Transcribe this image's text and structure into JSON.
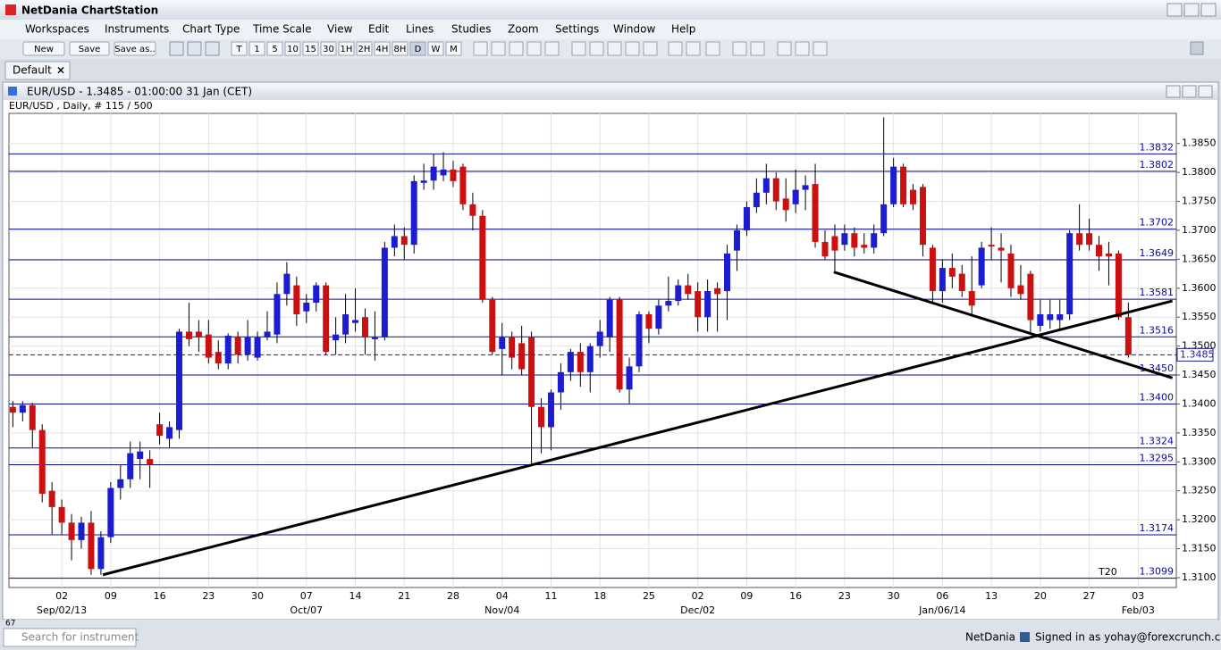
{
  "window": {
    "title": "NetDania ChartStation"
  },
  "menu": [
    "Workspaces",
    "Instruments",
    "Chart Type",
    "Time Scale",
    "View",
    "Edit",
    "Lines",
    "Studies",
    "Zoom",
    "Settings",
    "Window",
    "Help"
  ],
  "toolbar": {
    "buttons": [
      "New",
      "Save",
      "Save as.."
    ],
    "timescales": [
      "T",
      "1",
      "5",
      "10",
      "15",
      "30",
      "1H",
      "2H",
      "4H",
      "8H",
      "D",
      "W",
      "M"
    ]
  },
  "tabs": [
    "Default"
  ],
  "chart_window": {
    "title": "EUR/USD - 1.3485 - 01:00:00  31 Jan (CET)"
  },
  "chart_data": {
    "type": "candlestick",
    "subtitle": "EUR/USD , Daily, # 115 / 500",
    "up_color": "#1c1cd0",
    "down_color": "#cc1010",
    "grid": true,
    "xlim": [
      -0.4,
      118.9
    ],
    "ylim": [
      1.3083,
      1.3902
    ],
    "yticks": [
      {
        "value": 1.31,
        "label": "1.3100"
      },
      {
        "value": 1.315,
        "label": "1.3150"
      },
      {
        "value": 1.32,
        "label": "1.3200"
      },
      {
        "value": 1.325,
        "label": "1.3250"
      },
      {
        "value": 1.33,
        "label": "1.3300"
      },
      {
        "value": 1.335,
        "label": "1.3350"
      },
      {
        "value": 1.34,
        "label": "1.3400"
      },
      {
        "value": 1.345,
        "label": "1.3450"
      },
      {
        "value": 1.35,
        "label": "1.3500"
      },
      {
        "value": 1.355,
        "label": "1.3550"
      },
      {
        "value": 1.36,
        "label": "1.3600"
      },
      {
        "value": 1.365,
        "label": "1.3650"
      },
      {
        "value": 1.37,
        "label": "1.3700"
      },
      {
        "value": 1.375,
        "label": "1.3750"
      },
      {
        "value": 1.38,
        "label": "1.3800"
      },
      {
        "value": 1.385,
        "label": "1.3850"
      }
    ],
    "xticks": [
      {
        "value": 5,
        "label": "02"
      },
      {
        "value": 10,
        "label": "09"
      },
      {
        "value": 15,
        "label": "16"
      },
      {
        "value": 20,
        "label": "23"
      },
      {
        "value": 25,
        "label": "30"
      },
      {
        "value": 30,
        "label": "07"
      },
      {
        "value": 35,
        "label": "14"
      },
      {
        "value": 40,
        "label": "21"
      },
      {
        "value": 45,
        "label": "28"
      },
      {
        "value": 50,
        "label": "04"
      },
      {
        "value": 55,
        "label": "11"
      },
      {
        "value": 60,
        "label": "18"
      },
      {
        "value": 65,
        "label": "25"
      },
      {
        "value": 70,
        "label": "02"
      },
      {
        "value": 75,
        "label": "09"
      },
      {
        "value": 80,
        "label": "16"
      },
      {
        "value": 85,
        "label": "23"
      },
      {
        "value": 90,
        "label": "30"
      },
      {
        "value": 95,
        "label": "06"
      },
      {
        "value": 100,
        "label": "13"
      },
      {
        "value": 105,
        "label": "20"
      },
      {
        "value": 110,
        "label": "27"
      },
      {
        "value": 115,
        "label": "03"
      }
    ],
    "xticks_major": [
      {
        "value": 5,
        "label": "Sep/02/13"
      },
      {
        "value": 30,
        "label": "Oct/07"
      },
      {
        "value": 50,
        "label": "Nov/04"
      },
      {
        "value": 70,
        "label": "Dec/02"
      },
      {
        "value": 95,
        "label": "Jan/06/14"
      },
      {
        "value": 115,
        "label": "Feb/03"
      }
    ],
    "levels": [
      1.3832,
      1.3802,
      1.3702,
      1.3649,
      1.3581,
      1.3516,
      {
        "value": 1.345,
        "label": "1.3450"
      },
      {
        "value": 1.34,
        "label": "1.3400"
      },
      1.3324,
      1.3295,
      1.3174,
      1.3099
    ],
    "level_color": "#0a0a9a",
    "last_price": {
      "value": 1.3485,
      "label": "1.3485"
    },
    "trendlines": [
      [
        9.2,
        1.3105,
        118.5,
        1.3578
      ],
      [
        83.9,
        1.3628,
        118.5,
        1.3445
      ]
    ],
    "annotation": "T20",
    "ohlc": [
      [
        1.3395,
        1.3405,
        1.336,
        1.3385
      ],
      [
        1.3385,
        1.3405,
        1.337,
        1.3398
      ],
      [
        1.3398,
        1.3402,
        1.3325,
        1.3355
      ],
      [
        1.3355,
        1.3365,
        1.323,
        1.3245
      ],
      [
        1.325,
        1.3265,
        1.3175,
        1.3222
      ],
      [
        1.3222,
        1.3235,
        1.3175,
        1.3195
      ],
      [
        1.3195,
        1.321,
        1.313,
        1.3165
      ],
      [
        1.3165,
        1.3205,
        1.315,
        1.3195
      ],
      [
        1.3195,
        1.3215,
        1.3105,
        1.3115
      ],
      [
        1.3115,
        1.318,
        1.3105,
        1.317
      ],
      [
        1.317,
        1.3265,
        1.316,
        1.3255
      ],
      [
        1.3255,
        1.3295,
        1.3235,
        1.327
      ],
      [
        1.327,
        1.3335,
        1.3255,
        1.3315
      ],
      [
        1.3305,
        1.3335,
        1.327,
        1.3318
      ],
      [
        1.3305,
        1.332,
        1.3255,
        1.3295
      ],
      [
        1.3365,
        1.3385,
        1.333,
        1.3345
      ],
      [
        1.334,
        1.337,
        1.3325,
        1.336
      ],
      [
        1.3355,
        1.353,
        1.334,
        1.3525
      ],
      [
        1.3525,
        1.3575,
        1.35,
        1.3512
      ],
      [
        1.3525,
        1.3545,
        1.349,
        1.3515
      ],
      [
        1.352,
        1.3545,
        1.347,
        1.348
      ],
      [
        1.349,
        1.351,
        1.346,
        1.347
      ],
      [
        1.347,
        1.3522,
        1.346,
        1.3518
      ],
      [
        1.3515,
        1.3525,
        1.347,
        1.3485
      ],
      [
        1.3485,
        1.3545,
        1.3475,
        1.3515
      ],
      [
        1.348,
        1.3525,
        1.3475,
        1.3515
      ],
      [
        1.3515,
        1.356,
        1.351,
        1.3525
      ],
      [
        1.352,
        1.361,
        1.3505,
        1.359
      ],
      [
        1.359,
        1.3645,
        1.357,
        1.3625
      ],
      [
        1.3605,
        1.362,
        1.3535,
        1.3555
      ],
      [
        1.356,
        1.359,
        1.354,
        1.3575
      ],
      [
        1.3575,
        1.361,
        1.356,
        1.3605
      ],
      [
        1.3605,
        1.361,
        1.3485,
        1.349
      ],
      [
        1.351,
        1.355,
        1.3485,
        1.352
      ],
      [
        1.352,
        1.359,
        1.3505,
        1.3555
      ],
      [
        1.354,
        1.36,
        1.3525,
        1.3545
      ],
      [
        1.355,
        1.3565,
        1.3485,
        1.3515
      ],
      [
        1.3512,
        1.356,
        1.3475,
        1.3515
      ],
      [
        1.3515,
        1.368,
        1.351,
        1.367
      ],
      [
        1.367,
        1.371,
        1.3655,
        1.369
      ],
      [
        1.369,
        1.3705,
        1.365,
        1.3675
      ],
      [
        1.3675,
        1.3795,
        1.366,
        1.3785
      ],
      [
        1.3782,
        1.3815,
        1.377,
        1.3786
      ],
      [
        1.3786,
        1.3832,
        1.377,
        1.381
      ],
      [
        1.3795,
        1.3835,
        1.3785,
        1.3805
      ],
      [
        1.3805,
        1.382,
        1.3775,
        1.3785
      ],
      [
        1.381,
        1.3815,
        1.3735,
        1.3745
      ],
      [
        1.3745,
        1.3765,
        1.37,
        1.3725
      ],
      [
        1.3725,
        1.3735,
        1.3575,
        1.358
      ],
      [
        1.358,
        1.3585,
        1.3485,
        1.349
      ],
      [
        1.3495,
        1.354,
        1.345,
        1.3515
      ],
      [
        1.3515,
        1.3525,
        1.346,
        1.348
      ],
      [
        1.3505,
        1.3535,
        1.345,
        1.346
      ],
      [
        1.3515,
        1.3525,
        1.3295,
        1.3395
      ],
      [
        1.3395,
        1.341,
        1.3315,
        1.336
      ],
      [
        1.336,
        1.3425,
        1.332,
        1.342
      ],
      [
        1.342,
        1.347,
        1.339,
        1.3455
      ],
      [
        1.3455,
        1.3495,
        1.344,
        1.349
      ],
      [
        1.349,
        1.3505,
        1.343,
        1.3455
      ],
      [
        1.3455,
        1.3505,
        1.342,
        1.35
      ],
      [
        1.35,
        1.3545,
        1.348,
        1.3525
      ],
      [
        1.3515,
        1.3585,
        1.349,
        1.358
      ],
      [
        1.358,
        1.3585,
        1.342,
        1.3425
      ],
      [
        1.3425,
        1.348,
        1.34,
        1.3465
      ],
      [
        1.3465,
        1.356,
        1.3455,
        1.3555
      ],
      [
        1.3555,
        1.356,
        1.3505,
        1.353
      ],
      [
        1.353,
        1.358,
        1.352,
        1.357
      ],
      [
        1.357,
        1.362,
        1.356,
        1.3578
      ],
      [
        1.3578,
        1.3615,
        1.357,
        1.3605
      ],
      [
        1.3605,
        1.3625,
        1.358,
        1.359
      ],
      [
        1.3595,
        1.361,
        1.3525,
        1.355
      ],
      [
        1.355,
        1.3615,
        1.3525,
        1.3595
      ],
      [
        1.36,
        1.361,
        1.3525,
        1.359
      ],
      [
        1.3595,
        1.3675,
        1.3545,
        1.366
      ],
      [
        1.3665,
        1.371,
        1.363,
        1.37
      ],
      [
        1.37,
        1.375,
        1.369,
        1.374
      ],
      [
        1.374,
        1.379,
        1.373,
        1.3765
      ],
      [
        1.3765,
        1.3815,
        1.3745,
        1.379
      ],
      [
        1.379,
        1.38,
        1.3735,
        1.375
      ],
      [
        1.3755,
        1.379,
        1.3715,
        1.3735
      ],
      [
        1.3745,
        1.3805,
        1.373,
        1.377
      ],
      [
        1.377,
        1.3795,
        1.3735,
        1.3778
      ],
      [
        1.378,
        1.3815,
        1.367,
        1.368
      ],
      [
        1.368,
        1.37,
        1.365,
        1.3655
      ],
      [
        1.369,
        1.371,
        1.363,
        1.3665
      ],
      [
        1.3675,
        1.371,
        1.3665,
        1.3695
      ],
      [
        1.3695,
        1.3705,
        1.3655,
        1.367
      ],
      [
        1.3675,
        1.3695,
        1.366,
        1.367
      ],
      [
        1.367,
        1.371,
        1.366,
        1.3695
      ],
      [
        1.3695,
        1.3895,
        1.369,
        1.3745
      ],
      [
        1.3745,
        1.3825,
        1.374,
        1.381
      ],
      [
        1.381,
        1.3815,
        1.374,
        1.3745
      ],
      [
        1.377,
        1.378,
        1.3735,
        1.3745
      ],
      [
        1.3775,
        1.378,
        1.3655,
        1.3675
      ],
      [
        1.367,
        1.3675,
        1.3575,
        1.3595
      ],
      [
        1.3595,
        1.365,
        1.3575,
        1.3635
      ],
      [
        1.3635,
        1.366,
        1.36,
        1.362
      ],
      [
        1.3625,
        1.364,
        1.3585,
        1.3595
      ],
      [
        1.3595,
        1.3655,
        1.3555,
        1.357
      ],
      [
        1.3605,
        1.368,
        1.36,
        1.367
      ],
      [
        1.3675,
        1.3705,
        1.365,
        1.3672
      ],
      [
        1.367,
        1.3695,
        1.361,
        1.3665
      ],
      [
        1.366,
        1.3675,
        1.3585,
        1.36
      ],
      [
        1.3605,
        1.364,
        1.358,
        1.359
      ],
      [
        1.3625,
        1.363,
        1.352,
        1.3545
      ],
      [
        1.3535,
        1.358,
        1.3525,
        1.3555
      ],
      [
        1.3545,
        1.358,
        1.353,
        1.3555
      ],
      [
        1.3545,
        1.358,
        1.353,
        1.3555
      ],
      [
        1.3555,
        1.37,
        1.3545,
        1.3695
      ],
      [
        1.3695,
        1.3745,
        1.3665,
        1.3675
      ],
      [
        1.3695,
        1.372,
        1.3665,
        1.3675
      ],
      [
        1.3675,
        1.369,
        1.363,
        1.3655
      ],
      [
        1.366,
        1.368,
        1.3605,
        1.3655
      ],
      [
        1.366,
        1.3665,
        1.3545,
        1.355
      ],
      [
        1.355,
        1.3575,
        1.348,
        1.3485
      ]
    ]
  },
  "status": {
    "zoom": "67",
    "search_placeholder": "Search for instrument",
    "brand": "NetDania",
    "signed_in": "Signed in as yohay@forexcrunch.com"
  }
}
